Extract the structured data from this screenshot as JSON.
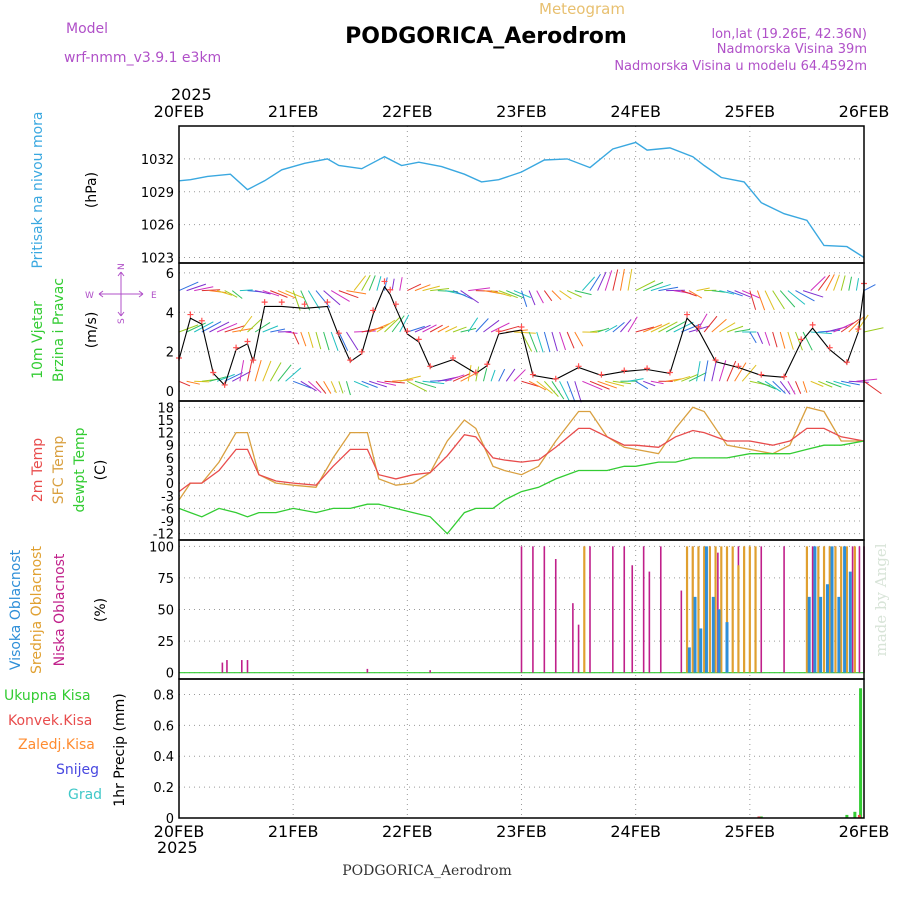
{
  "header": {
    "top_label": "Meteogram",
    "station_title": "PODGORICA_Aerodrom",
    "model_label": "Model",
    "model_name": "wrf-nmm_v3.9.1 e3km",
    "lonlat": "lon,lat (19.26E, 42.36N)",
    "altitude": "Nadmorska Visina 39m",
    "model_altitude": "Nadmorska Visina u modelu 64.4592m"
  },
  "footer": {
    "station": "PODGORICA_Aerodrom",
    "year": "2025",
    "watermark": "made by Angel"
  },
  "colors": {
    "pressure": "#3aa8e0",
    "temp2m": "#e84c4c",
    "sfc": "#d9a040",
    "dewpt": "#33cc33",
    "wind": "#000000",
    "high_cloud": "#2f8fd8",
    "mid_cloud": "#e0a030",
    "low_cloud": "#c0208a",
    "purple": "#b050c8",
    "total": "#33cc33",
    "conv": "#e84c4c",
    "frozen": "#ff8c30",
    "snow": "#4848e0",
    "grad": "#40c8c8"
  },
  "time_axis": {
    "year": "2025",
    "labels": [
      "20FEB",
      "21FEB",
      "22FEB",
      "23FEB",
      "24FEB",
      "25FEB",
      "26FEB"
    ]
  },
  "chart_data": [
    {
      "type": "line",
      "panel": "pressure",
      "title": "Pritisak na nivou mora",
      "ylabel": "(hPa)",
      "ylim": [
        1022.5,
        1035
      ],
      "yticks": [
        1023,
        1026,
        1029,
        1032
      ],
      "x": [
        0,
        0.1,
        0.25,
        0.45,
        0.6,
        0.75,
        0.9,
        1.1,
        1.3,
        1.4,
        1.6,
        1.8,
        1.95,
        2.1,
        2.3,
        2.5,
        2.65,
        2.8,
        3.0,
        3.2,
        3.4,
        3.6,
        3.8,
        4.0,
        4.1,
        4.3,
        4.5,
        4.6,
        4.75,
        4.95,
        5.1,
        5.3,
        5.5,
        5.65,
        5.85,
        6.0
      ],
      "series": [
        {
          "name": "MSLP",
          "values": [
            1030.0,
            1030.1,
            1030.4,
            1030.6,
            1029.2,
            1030.0,
            1031.0,
            1031.6,
            1032.0,
            1031.4,
            1031.1,
            1032.2,
            1031.4,
            1031.7,
            1031.3,
            1030.6,
            1029.9,
            1030.1,
            1030.8,
            1031.9,
            1032.0,
            1031.2,
            1032.9,
            1033.5,
            1032.8,
            1033.0,
            1032.2,
            1031.4,
            1030.3,
            1029.9,
            1028.0,
            1027.0,
            1026.4,
            1024.1,
            1024.0,
            1023.0
          ]
        }
      ]
    },
    {
      "type": "line",
      "panel": "wind",
      "title": "10m Vjetar Brzina i Pravac",
      "ylabel": "(m/s)",
      "ylim": [
        -0.5,
        6.5
      ],
      "yticks": [
        0,
        2,
        4,
        6
      ],
      "compass": [
        "N",
        "E",
        "S",
        "W"
      ],
      "x": [
        0,
        0.1,
        0.2,
        0.3,
        0.4,
        0.5,
        0.6,
        0.65,
        0.75,
        0.9,
        1.1,
        1.3,
        1.4,
        1.5,
        1.6,
        1.7,
        1.8,
        1.85,
        1.9,
        2.0,
        2.1,
        2.2,
        2.4,
        2.6,
        2.7,
        2.8,
        3.0,
        3.1,
        3.3,
        3.5,
        3.7,
        3.9,
        4.1,
        4.3,
        4.45,
        4.55,
        4.7,
        4.9,
        5.1,
        5.3,
        5.45,
        5.55,
        5.7,
        5.85,
        5.95,
        6.0
      ],
      "series": [
        {
          "name": "wind speed",
          "values": [
            1.6,
            3.7,
            3.4,
            0.9,
            0.3,
            2.1,
            2.4,
            1.5,
            4.3,
            4.3,
            4.2,
            4.3,
            2.8,
            1.5,
            1.9,
            3.9,
            5.3,
            4.9,
            4.2,
            2.9,
            2.5,
            1.2,
            1.6,
            0.9,
            1.3,
            2.9,
            3.1,
            0.8,
            0.6,
            1.2,
            0.8,
            1.0,
            1.1,
            0.9,
            3.7,
            3.1,
            1.5,
            1.2,
            0.8,
            0.7,
            2.5,
            3.2,
            2.1,
            1.4,
            3.0,
            5.2
          ]
        }
      ]
    },
    {
      "type": "line",
      "panel": "temperature",
      "title": "2m Temp / SFC Temp / dewpt Temp",
      "ylabel": "(C)",
      "ylim": [
        -13.5,
        19.5
      ],
      "yticks": [
        -12,
        -9,
        -6,
        -3,
        0,
        3,
        6,
        9,
        12,
        15,
        18
      ],
      "x": [
        0,
        0.1,
        0.2,
        0.35,
        0.5,
        0.6,
        0.7,
        0.85,
        1.0,
        1.2,
        1.35,
        1.5,
        1.65,
        1.75,
        1.9,
        2.05,
        2.2,
        2.35,
        2.5,
        2.6,
        2.75,
        2.85,
        3.0,
        3.15,
        3.3,
        3.5,
        3.6,
        3.75,
        3.9,
        4.0,
        4.2,
        4.35,
        4.5,
        4.6,
        4.8,
        5.0,
        5.2,
        5.35,
        5.5,
        5.65,
        5.8,
        6.0
      ],
      "series": [
        {
          "name": "2m Temp",
          "values": [
            -2,
            0,
            0,
            3,
            8,
            8,
            2,
            0.5,
            0,
            -0.5,
            4,
            8,
            8,
            2,
            1,
            2,
            2.5,
            6.5,
            11.5,
            11,
            6,
            5.5,
            5,
            5.5,
            8.5,
            13,
            13,
            11,
            9,
            9,
            8.5,
            11,
            12.5,
            12,
            10,
            10,
            9,
            10,
            13,
            13,
            11,
            10
          ]
        },
        {
          "name": "SFC Temp",
          "values": [
            -4,
            0,
            0,
            5,
            12,
            12,
            2,
            0,
            -0.5,
            -1,
            6,
            12,
            12,
            1,
            -0.5,
            0,
            2.5,
            10,
            15,
            13,
            4,
            3,
            2,
            4,
            10,
            17,
            17,
            11,
            8.5,
            8,
            7,
            13,
            18,
            17,
            9,
            8,
            7,
            9,
            18,
            17,
            10,
            10
          ]
        },
        {
          "name": "dewpt Temp",
          "values": [
            -6,
            -7,
            -8,
            -6,
            -7,
            -8,
            -7,
            -7,
            -6,
            -7,
            -6,
            -6,
            -5,
            -5,
            -6,
            -7,
            -8,
            -12,
            -7,
            -6,
            -6,
            -4,
            -2,
            -1,
            1,
            3,
            3,
            3,
            4,
            4,
            5,
            5,
            6,
            6,
            6,
            7,
            7,
            7,
            8,
            9,
            9,
            10
          ]
        }
      ]
    },
    {
      "type": "bar",
      "panel": "clouds",
      "title": "Visoka Oblacnost / Srednja Oblacnost / Niska Oblacnost",
      "ylabel": "(%)",
      "ylim": [
        -5,
        105
      ],
      "yticks": [
        0,
        25,
        50,
        75,
        100
      ],
      "series": [
        {
          "name": "Niska Oblacnost",
          "x": [
            0.38,
            0.42,
            0.55,
            0.6,
            1.65,
            2.2,
            3.0,
            3.1,
            3.2,
            3.3,
            3.45,
            3.5,
            3.6,
            3.8,
            3.9,
            3.97,
            4.07,
            4.12,
            4.22,
            4.4,
            4.5,
            4.65,
            4.72,
            4.9,
            5.1,
            5.3,
            5.55,
            5.75,
            5.9,
            5.96,
            6.0
          ],
          "values": [
            8,
            10,
            10,
            10,
            3,
            2,
            100,
            100,
            100,
            90,
            55,
            38,
            100,
            100,
            100,
            85,
            100,
            80,
            100,
            65,
            100,
            100,
            95,
            100,
            100,
            100,
            100,
            100,
            100,
            100,
            100
          ]
        },
        {
          "name": "Srednja Oblacnost",
          "x": [
            3.55,
            4.45,
            4.5,
            4.55,
            4.6,
            4.65,
            4.7,
            4.75,
            4.8,
            4.85,
            4.9,
            4.95,
            5.0,
            5.05,
            5.5,
            5.6,
            5.65,
            5.7,
            5.75,
            5.8,
            5.85,
            5.92
          ],
          "values": [
            100,
            100,
            100,
            100,
            100,
            100,
            100,
            100,
            100,
            100,
            85,
            100,
            100,
            100,
            100,
            100,
            100,
            100,
            100,
            100,
            100,
            100
          ]
        },
        {
          "name": "Visoka Oblacnost",
          "x": [
            4.47,
            4.52,
            4.57,
            4.62,
            4.68,
            4.73,
            4.8,
            5.52,
            5.57,
            5.62,
            5.68,
            5.72,
            5.78,
            5.83,
            5.88
          ],
          "values": [
            20,
            60,
            35,
            100,
            60,
            50,
            40,
            60,
            100,
            60,
            70,
            100,
            60,
            100,
            80
          ]
        }
      ]
    },
    {
      "type": "bar",
      "panel": "precip",
      "title": "Ukupna Kisa / Konvek.Kisa / Zaledj.Kisa / Snijeg / Grad",
      "ylabel": "1hr Precip (mm)",
      "ylim": [
        0,
        0.9
      ],
      "yticks": [
        0,
        0.2,
        0.4,
        0.6,
        0.8
      ],
      "series": [
        {
          "name": "Ukupna Kisa",
          "x": [
            5.1,
            5.85,
            5.92,
            5.97
          ],
          "values": [
            0.01,
            0.02,
            0.04,
            0.84
          ]
        },
        {
          "name": "Konvek.Kisa",
          "x": [
            5.08,
            5.96
          ],
          "values": [
            0.01,
            0.02
          ]
        }
      ]
    }
  ]
}
